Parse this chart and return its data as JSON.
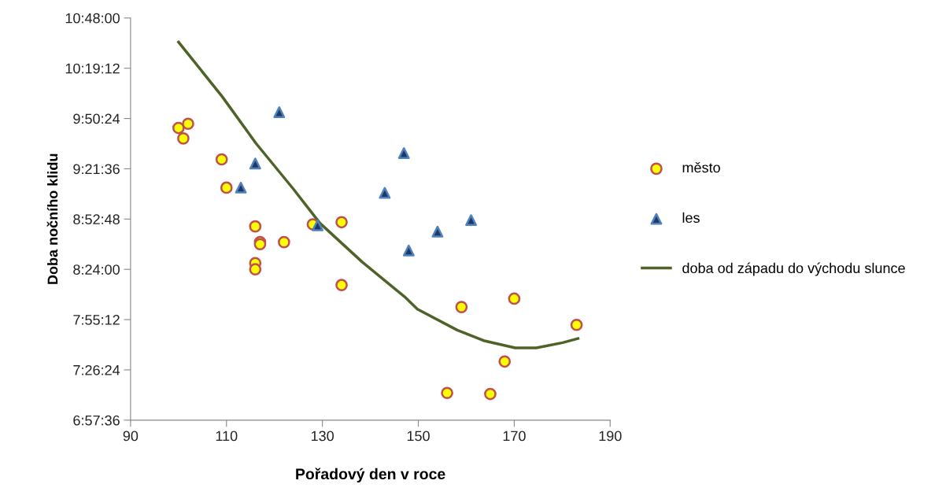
{
  "chart_data": {
    "type": "scatter",
    "xlabel": "Pořadový den v roce",
    "ylabel": "Doba nočního klidu",
    "xlim": [
      90,
      190
    ],
    "xticks": [
      90,
      110,
      130,
      150,
      170,
      190
    ],
    "ylim": [
      6.96,
      10.8
    ],
    "yticks": [
      {
        "value": 6.96,
        "label": "6:57:36"
      },
      {
        "value": 7.44,
        "label": "7:26:24"
      },
      {
        "value": 7.92,
        "label": "7:55:12"
      },
      {
        "value": 8.4,
        "label": "8:24:00"
      },
      {
        "value": 8.88,
        "label": "8:52:48"
      },
      {
        "value": 9.36,
        "label": "9:21:36"
      },
      {
        "value": 9.84,
        "label": "9:50:24"
      },
      {
        "value": 10.32,
        "label": "10:19:12"
      },
      {
        "value": 10.8,
        "label": "10:48:00"
      }
    ],
    "grid": false,
    "legend": "right",
    "series": [
      {
        "name": "město",
        "marker": "circle",
        "color": "#ffff00",
        "x": [
          100,
          102,
          101,
          109,
          110,
          116,
          117,
          117,
          122,
          128,
          134,
          116,
          116,
          134,
          159,
          170,
          183,
          168,
          156,
          165
        ],
        "values": [
          9.75,
          9.79,
          9.65,
          9.45,
          9.18,
          8.81,
          8.66,
          8.64,
          8.66,
          8.83,
          8.85,
          8.46,
          8.4,
          8.25,
          8.04,
          8.12,
          7.87,
          7.52,
          7.22,
          7.21
        ]
      },
      {
        "name": "les",
        "marker": "triangle",
        "color": "#1f3864",
        "x": [
          121,
          116,
          113,
          129,
          147,
          143,
          161,
          154,
          148
        ],
        "values": [
          9.9,
          9.41,
          9.18,
          8.82,
          9.51,
          9.13,
          8.87,
          8.76,
          8.58
        ]
      },
      {
        "name": "doba od západu do východu slunce",
        "type": "line",
        "marker": "none",
        "line_style": "solid",
        "color": "#4f6228",
        "x": [
          100,
          109.1,
          116.2,
          123.9,
          129.5,
          138.3,
          147.1,
          149.8,
          158.1,
          163.6,
          170.2,
          174.6,
          180.1,
          183.3
        ],
        "values": [
          10.57,
          10.05,
          9.6,
          9.17,
          8.84,
          8.47,
          8.14,
          8.02,
          7.82,
          7.72,
          7.65,
          7.65,
          7.7,
          7.74
        ]
      }
    ]
  }
}
